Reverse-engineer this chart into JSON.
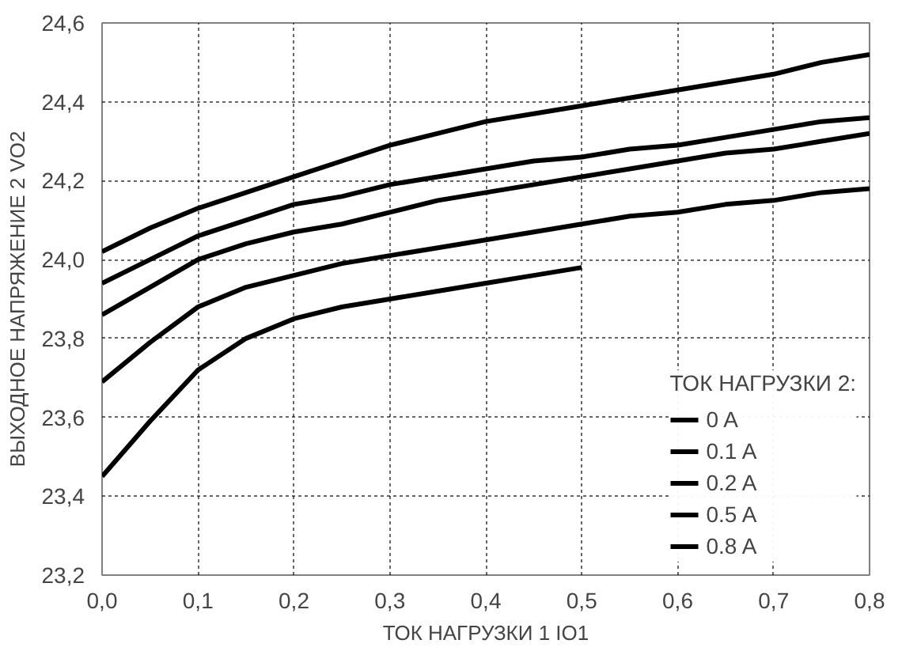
{
  "chart_data": {
    "type": "line",
    "xlabel": "ТОК НАГРУЗКИ 1 IO1",
    "ylabel": "ВЫХОДНОЕ НАПРЯЖЕНИЕ 2 VO2",
    "legend_title": "ТОК НАГРУЗКИ 2:",
    "x": [
      0,
      0.05,
      0.1,
      0.15,
      0.2,
      0.25,
      0.3,
      0.35,
      0.4,
      0.45,
      0.5,
      0.55,
      0.6,
      0.65,
      0.7,
      0.75,
      0.8
    ],
    "series": [
      {
        "name": "0 A",
        "color": "#000000",
        "values": [
          24.02,
          24.08,
          24.13,
          24.17,
          24.21,
          24.25,
          24.29,
          24.32,
          24.35,
          24.37,
          24.39,
          24.41,
          24.43,
          24.45,
          24.47,
          24.5,
          24.52
        ]
      },
      {
        "name": "0.1 A",
        "color": "#000000",
        "values": [
          23.94,
          24.0,
          24.06,
          24.1,
          24.14,
          24.16,
          24.19,
          24.21,
          24.23,
          24.25,
          24.26,
          24.28,
          24.29,
          24.31,
          24.33,
          24.35,
          24.36
        ]
      },
      {
        "name": "0.2 A",
        "color": "#000000",
        "values": [
          23.86,
          23.93,
          24.0,
          24.04,
          24.07,
          24.09,
          24.12,
          24.15,
          24.17,
          24.19,
          24.21,
          24.23,
          24.25,
          24.27,
          24.28,
          24.3,
          24.32
        ]
      },
      {
        "name": "0.5 A",
        "color": "#000000",
        "values": [
          23.69,
          23.79,
          23.88,
          23.93,
          23.96,
          23.99,
          24.01,
          24.03,
          24.05,
          24.07,
          24.09,
          24.11,
          24.12,
          24.14,
          24.15,
          24.17,
          24.18
        ]
      },
      {
        "name": "0.8 A",
        "color": "#000000",
        "x": [
          0,
          0.05,
          0.1,
          0.15,
          0.2,
          0.25,
          0.3,
          0.35,
          0.4,
          0.45,
          0.5
        ],
        "values": [
          23.45,
          23.59,
          23.72,
          23.8,
          23.85,
          23.88,
          23.9,
          23.92,
          23.94,
          23.96,
          23.98
        ]
      }
    ],
    "xlim": [
      0,
      0.8
    ],
    "ylim": [
      23.2,
      24.6
    ],
    "xticks": [
      {
        "value": 0,
        "label": "0,0"
      },
      {
        "value": 0.1,
        "label": "0,1"
      },
      {
        "value": 0.2,
        "label": "0,2"
      },
      {
        "value": 0.3,
        "label": "0,3"
      },
      {
        "value": 0.4,
        "label": "0,4"
      },
      {
        "value": 0.5,
        "label": "0,5"
      },
      {
        "value": 0.6,
        "label": "0,6"
      },
      {
        "value": 0.7,
        "label": "0,7"
      },
      {
        "value": 0.8,
        "label": "0,8"
      }
    ],
    "yticks": [
      {
        "value": 23.2,
        "label": "23,2"
      },
      {
        "value": 23.4,
        "label": "23,4"
      },
      {
        "value": 23.6,
        "label": "23,6"
      },
      {
        "value": 23.8,
        "label": "23,8"
      },
      {
        "value": 24.0,
        "label": "24,0"
      },
      {
        "value": 24.2,
        "label": "24,2"
      },
      {
        "value": 24.4,
        "label": "24,4"
      },
      {
        "value": 24.6,
        "label": "24,6"
      }
    ],
    "grid": true,
    "legend": "bottom right",
    "marker": "none",
    "line_style": "solid"
  }
}
